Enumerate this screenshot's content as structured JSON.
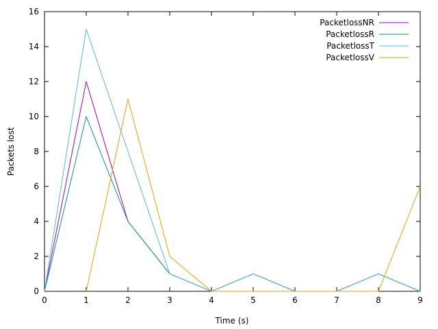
{
  "chart_data": {
    "type": "line",
    "title": "",
    "xlabel": "Time (s)",
    "ylabel": "Packets lost",
    "xlim": [
      0,
      9
    ],
    "ylim": [
      0,
      16
    ],
    "xticks": [
      0,
      1,
      2,
      3,
      4,
      5,
      6,
      7,
      8,
      9
    ],
    "yticks": [
      0,
      2,
      4,
      6,
      8,
      10,
      12,
      14,
      16
    ],
    "grid": false,
    "legend_position": "top-right",
    "series": [
      {
        "name": "PacketlossNR",
        "color": "#9400d3",
        "x": [
          0,
          1,
          2,
          3,
          4,
          5,
          6,
          7,
          8,
          9
        ],
        "y": [
          0,
          12,
          4,
          1,
          0,
          1,
          0,
          0,
          1,
          0
        ]
      },
      {
        "name": "PacketlossR",
        "color": "#009e73",
        "x": [
          0,
          1,
          2,
          3,
          4,
          5,
          6,
          7,
          8,
          9
        ],
        "y": [
          0,
          10,
          4,
          1,
          0,
          1,
          0,
          0,
          1,
          0
        ]
      },
      {
        "name": "PacketlossT",
        "color": "#56b4e9",
        "x": [
          0,
          1,
          2,
          3,
          4,
          5,
          6,
          7,
          8,
          9
        ],
        "y": [
          0,
          15,
          8,
          1,
          0,
          1,
          0,
          0,
          1,
          0
        ]
      },
      {
        "name": "PacketlossV",
        "color": "#e69f00",
        "x": [
          1,
          2,
          3,
          4,
          5,
          6,
          7,
          8,
          9
        ],
        "y": [
          0,
          11,
          2,
          0,
          0,
          0,
          0,
          0,
          6
        ]
      }
    ]
  }
}
